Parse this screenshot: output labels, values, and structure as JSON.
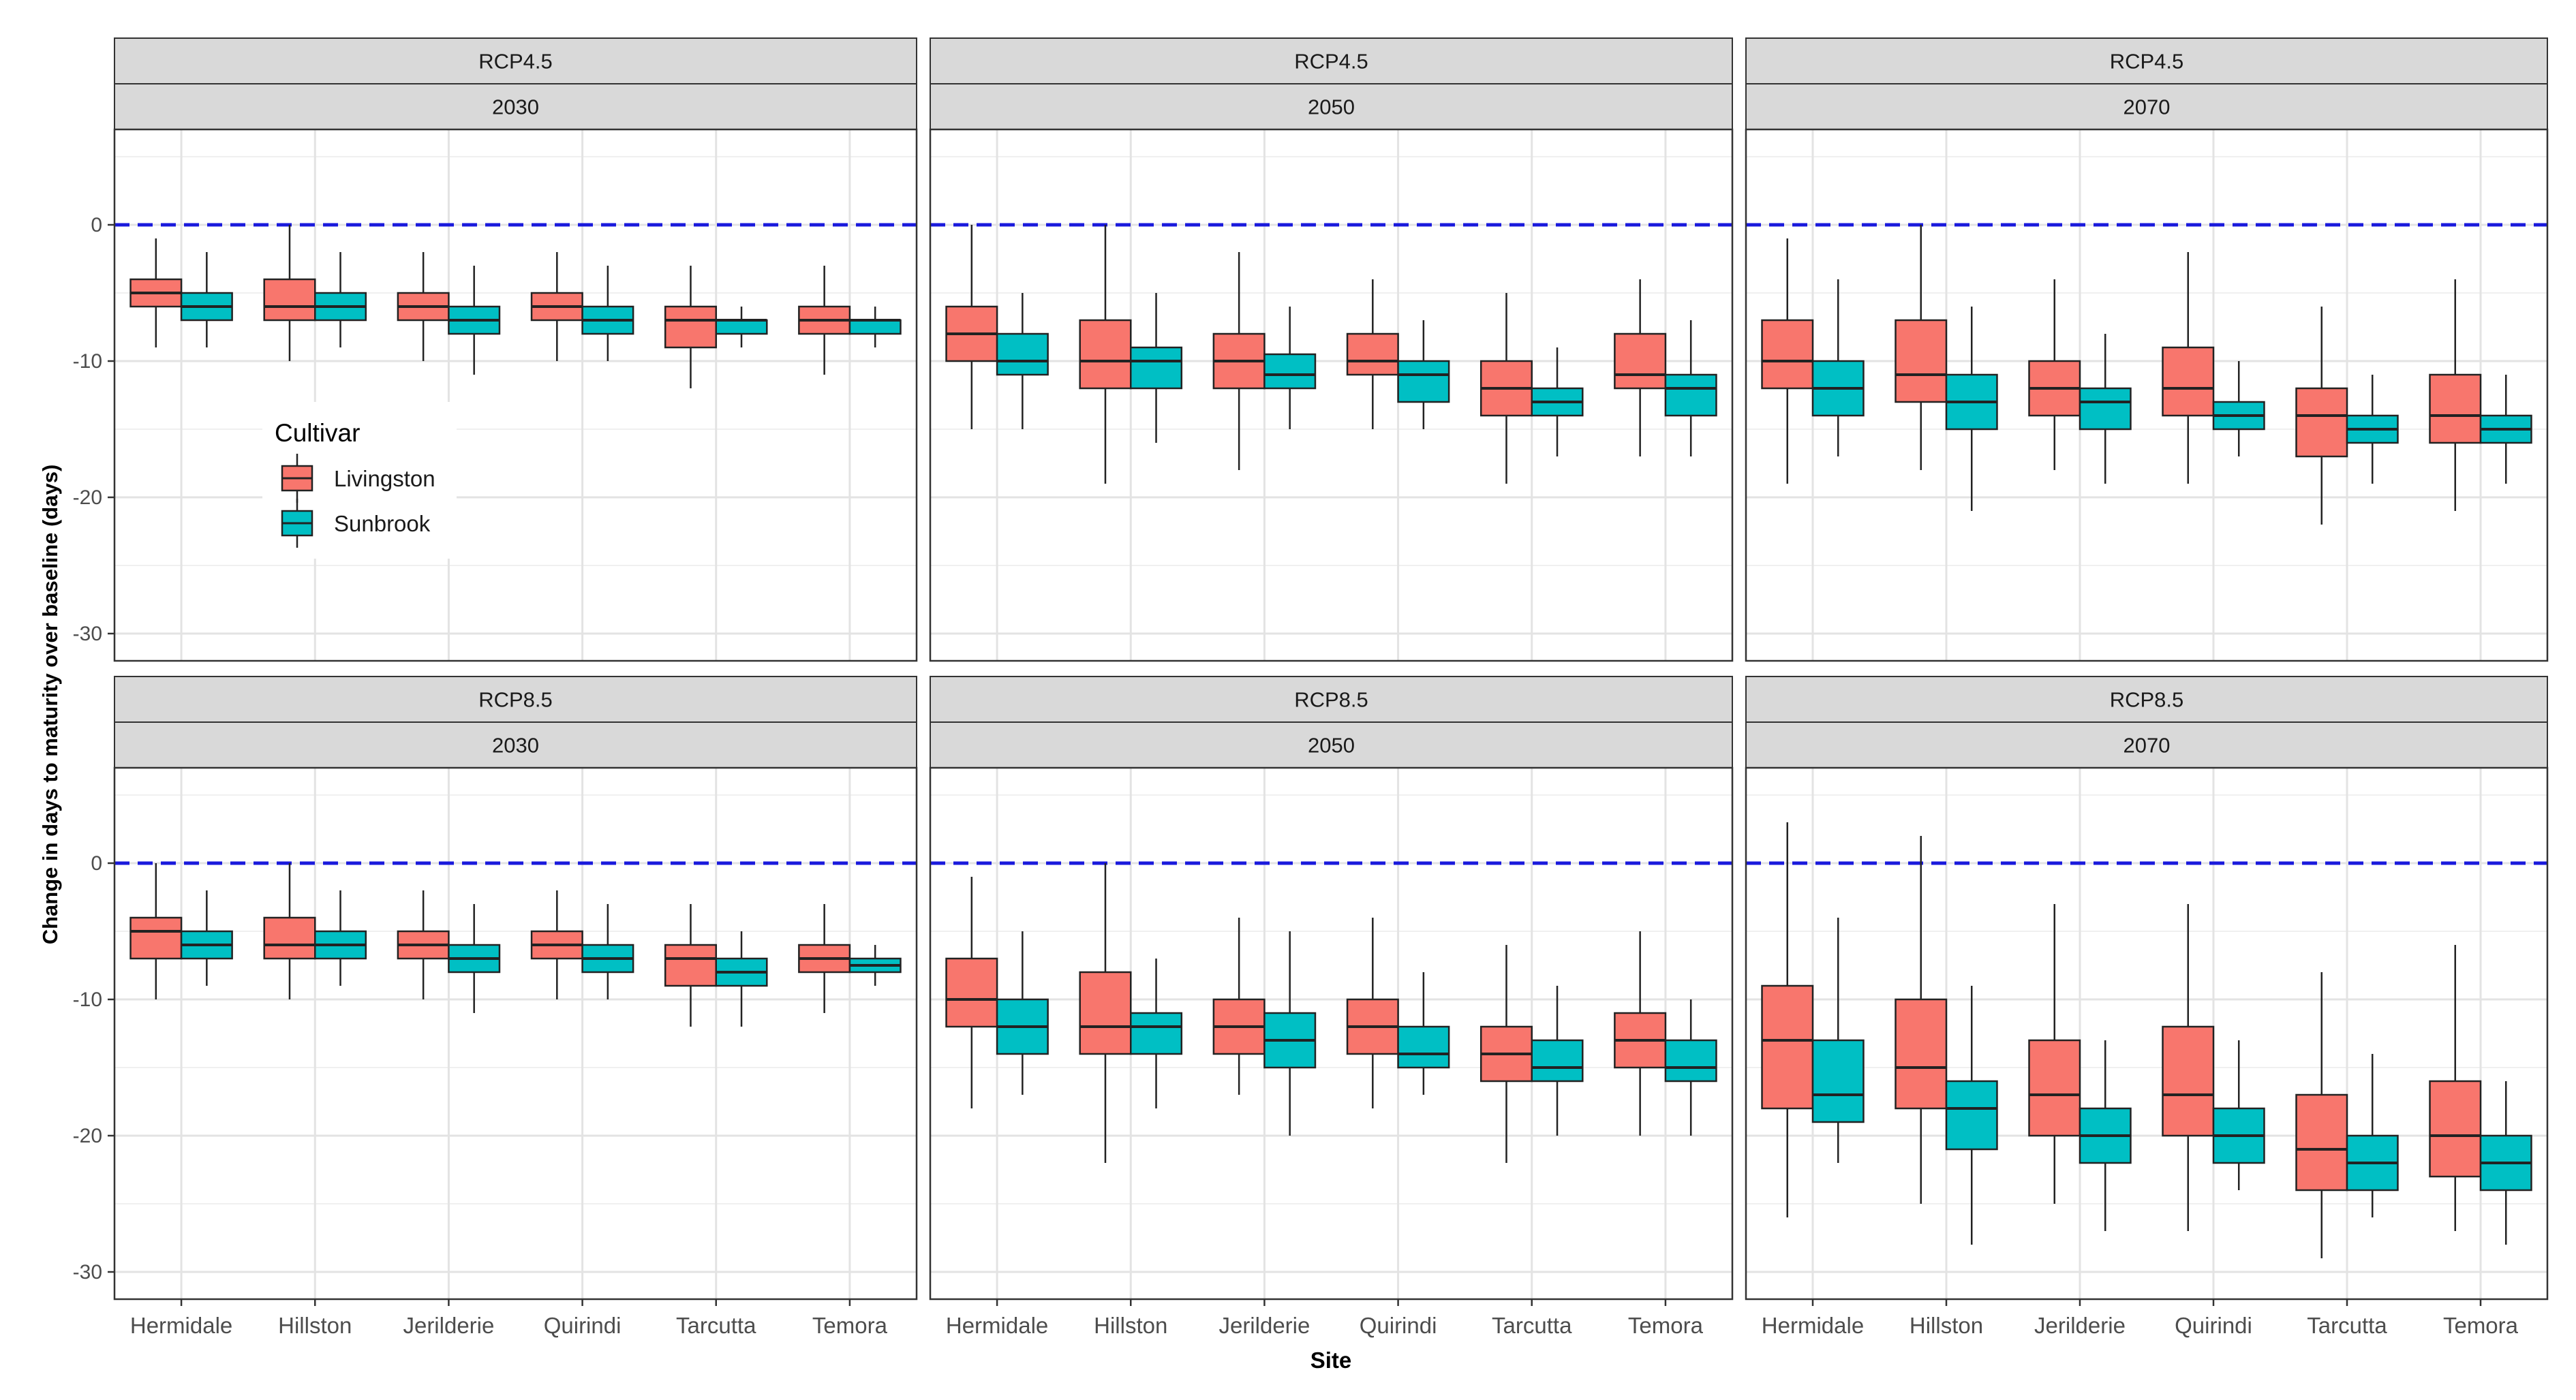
{
  "chart_data": {
    "type": "boxplot",
    "title": "",
    "xlabel": "Site",
    "ylabel": "Change in days to maturity over baseline (days)",
    "ylim": [
      -32,
      7
    ],
    "yticks": [
      0,
      -10,
      -20,
      -30
    ],
    "reference_line": {
      "y": 0,
      "style": "dashed",
      "color": "#1a1adc"
    },
    "categories": [
      "Hermidale",
      "Hillston",
      "Jerilderie",
      "Quirindi",
      "Tarcutta",
      "Temora"
    ],
    "legend": {
      "title": "Cultivar",
      "position": "inside-top-left-panel",
      "items": [
        {
          "name": "Livingston",
          "color": "#f8766d"
        },
        {
          "name": "Sunbrook",
          "color": "#00bfc4"
        }
      ]
    },
    "panels": [
      {
        "scenario": "RCP4.5",
        "year": "2030",
        "row": 0,
        "col": 0,
        "series": [
          {
            "name": "Livingston",
            "boxes": [
              {
                "min": -9,
                "q1": -6,
                "median": -5,
                "q3": -4,
                "max": -1
              },
              {
                "min": -10,
                "q1": -7,
                "median": -6,
                "q3": -4,
                "max": 0
              },
              {
                "min": -10,
                "q1": -7,
                "median": -6,
                "q3": -5,
                "max": -2
              },
              {
                "min": -10,
                "q1": -7,
                "median": -6,
                "q3": -5,
                "max": -2
              },
              {
                "min": -12,
                "q1": -9,
                "median": -7,
                "q3": -6,
                "max": -3
              },
              {
                "min": -11,
                "q1": -8,
                "median": -7,
                "q3": -6,
                "max": -3
              }
            ]
          },
          {
            "name": "Sunbrook",
            "boxes": [
              {
                "min": -9,
                "q1": -7,
                "median": -6,
                "q3": -5,
                "max": -2
              },
              {
                "min": -9,
                "q1": -7,
                "median": -6,
                "q3": -5,
                "max": -2
              },
              {
                "min": -11,
                "q1": -8,
                "median": -7,
                "q3": -6,
                "max": -3
              },
              {
                "min": -10,
                "q1": -8,
                "median": -7,
                "q3": -6,
                "max": -3
              },
              {
                "min": -9,
                "q1": -8,
                "median": -7,
                "q3": -7,
                "max": -6
              },
              {
                "min": -9,
                "q1": -8,
                "median": -7,
                "q3": -7,
                "max": -6
              }
            ]
          }
        ]
      },
      {
        "scenario": "RCP4.5",
        "year": "2050",
        "row": 0,
        "col": 1,
        "series": [
          {
            "name": "Livingston",
            "boxes": [
              {
                "min": -15,
                "q1": -10,
                "median": -8,
                "q3": -6,
                "max": 0
              },
              {
                "min": -19,
                "q1": -12,
                "median": -10,
                "q3": -7,
                "max": 0
              },
              {
                "min": -18,
                "q1": -12,
                "median": -10,
                "q3": -8,
                "max": -2
              },
              {
                "min": -15,
                "q1": -11,
                "median": -10,
                "q3": -8,
                "max": -4
              },
              {
                "min": -19,
                "q1": -14,
                "median": -12,
                "q3": -10,
                "max": -5
              },
              {
                "min": -17,
                "q1": -12,
                "median": -11,
                "q3": -8,
                "max": -4
              }
            ]
          },
          {
            "name": "Sunbrook",
            "boxes": [
              {
                "min": -15,
                "q1": -11,
                "median": -10,
                "q3": -8,
                "max": -5
              },
              {
                "min": -16,
                "q1": -12,
                "median": -10,
                "q3": -9,
                "max": -5
              },
              {
                "min": -15,
                "q1": -12,
                "median": -11,
                "q3": -9.5,
                "max": -6
              },
              {
                "min": -15,
                "q1": -13,
                "median": -11,
                "q3": -10,
                "max": -7
              },
              {
                "min": -17,
                "q1": -14,
                "median": -13,
                "q3": -12,
                "max": -9
              },
              {
                "min": -17,
                "q1": -14,
                "median": -12,
                "q3": -11,
                "max": -7
              }
            ]
          }
        ]
      },
      {
        "scenario": "RCP4.5",
        "year": "2070",
        "row": 0,
        "col": 2,
        "series": [
          {
            "name": "Livingston",
            "boxes": [
              {
                "min": -19,
                "q1": -12,
                "median": -10,
                "q3": -7,
                "max": -1
              },
              {
                "min": -18,
                "q1": -13,
                "median": -11,
                "q3": -7,
                "max": 0
              },
              {
                "min": -18,
                "q1": -14,
                "median": -12,
                "q3": -10,
                "max": -4
              },
              {
                "min": -19,
                "q1": -14,
                "median": -12,
                "q3": -9,
                "max": -2
              },
              {
                "min": -22,
                "q1": -17,
                "median": -14,
                "q3": -12,
                "max": -6
              },
              {
                "min": -21,
                "q1": -16,
                "median": -14,
                "q3": -11,
                "max": -4
              }
            ]
          },
          {
            "name": "Sunbrook",
            "boxes": [
              {
                "min": -17,
                "q1": -14,
                "median": -12,
                "q3": -10,
                "max": -4
              },
              {
                "min": -21,
                "q1": -15,
                "median": -13,
                "q3": -11,
                "max": -6
              },
              {
                "min": -19,
                "q1": -15,
                "median": -13,
                "q3": -12,
                "max": -8
              },
              {
                "min": -17,
                "q1": -15,
                "median": -14,
                "q3": -13,
                "max": -10
              },
              {
                "min": -19,
                "q1": -16,
                "median": -15,
                "q3": -14,
                "max": -11
              },
              {
                "min": -19,
                "q1": -16,
                "median": -15,
                "q3": -14,
                "max": -11
              }
            ]
          }
        ]
      },
      {
        "scenario": "RCP8.5",
        "year": "2030",
        "row": 1,
        "col": 0,
        "series": [
          {
            "name": "Livingston",
            "boxes": [
              {
                "min": -10,
                "q1": -7,
                "median": -5,
                "q3": -4,
                "max": 0
              },
              {
                "min": -10,
                "q1": -7,
                "median": -6,
                "q3": -4,
                "max": 0
              },
              {
                "min": -10,
                "q1": -7,
                "median": -6,
                "q3": -5,
                "max": -2
              },
              {
                "min": -10,
                "q1": -7,
                "median": -6,
                "q3": -5,
                "max": -2
              },
              {
                "min": -12,
                "q1": -9,
                "median": -7,
                "q3": -6,
                "max": -3
              },
              {
                "min": -11,
                "q1": -8,
                "median": -7,
                "q3": -6,
                "max": -3
              }
            ]
          },
          {
            "name": "Sunbrook",
            "boxes": [
              {
                "min": -9,
                "q1": -7,
                "median": -6,
                "q3": -5,
                "max": -2
              },
              {
                "min": -9,
                "q1": -7,
                "median": -6,
                "q3": -5,
                "max": -2
              },
              {
                "min": -11,
                "q1": -8,
                "median": -7,
                "q3": -6,
                "max": -3
              },
              {
                "min": -10,
                "q1": -8,
                "median": -7,
                "q3": -6,
                "max": -3
              },
              {
                "min": -12,
                "q1": -9,
                "median": -8,
                "q3": -7,
                "max": -5
              },
              {
                "min": -9,
                "q1": -8,
                "median": -7.5,
                "q3": -7,
                "max": -6
              }
            ]
          }
        ]
      },
      {
        "scenario": "RCP8.5",
        "year": "2050",
        "row": 1,
        "col": 1,
        "series": [
          {
            "name": "Livingston",
            "boxes": [
              {
                "min": -18,
                "q1": -12,
                "median": -10,
                "q3": -7,
                "max": -1
              },
              {
                "min": -22,
                "q1": -14,
                "median": -12,
                "q3": -8,
                "max": 0
              },
              {
                "min": -17,
                "q1": -14,
                "median": -12,
                "q3": -10,
                "max": -4
              },
              {
                "min": -18,
                "q1": -14,
                "median": -12,
                "q3": -10,
                "max": -4
              },
              {
                "min": -22,
                "q1": -16,
                "median": -14,
                "q3": -12,
                "max": -6
              },
              {
                "min": -20,
                "q1": -15,
                "median": -13,
                "q3": -11,
                "max": -5
              }
            ]
          },
          {
            "name": "Sunbrook",
            "boxes": [
              {
                "min": -17,
                "q1": -14,
                "median": -12,
                "q3": -10,
                "max": -5
              },
              {
                "min": -18,
                "q1": -14,
                "median": -12,
                "q3": -11,
                "max": -7
              },
              {
                "min": -20,
                "q1": -15,
                "median": -13,
                "q3": -11,
                "max": -5
              },
              {
                "min": -17,
                "q1": -15,
                "median": -14,
                "q3": -12,
                "max": -8
              },
              {
                "min": -20,
                "q1": -16,
                "median": -15,
                "q3": -13,
                "max": -9
              },
              {
                "min": -20,
                "q1": -16,
                "median": -15,
                "q3": -13,
                "max": -10
              }
            ]
          }
        ]
      },
      {
        "scenario": "RCP8.5",
        "year": "2070",
        "row": 1,
        "col": 2,
        "series": [
          {
            "name": "Livingston",
            "boxes": [
              {
                "min": -26,
                "q1": -18,
                "median": -13,
                "q3": -9,
                "max": 3
              },
              {
                "min": -25,
                "q1": -18,
                "median": -15,
                "q3": -10,
                "max": 2
              },
              {
                "min": -25,
                "q1": -20,
                "median": -17,
                "q3": -13,
                "max": -3
              },
              {
                "min": -27,
                "q1": -20,
                "median": -17,
                "q3": -12,
                "max": -3
              },
              {
                "min": -29,
                "q1": -24,
                "median": -21,
                "q3": -17,
                "max": -8
              },
              {
                "min": -27,
                "q1": -23,
                "median": -20,
                "q3": -16,
                "max": -6
              }
            ]
          },
          {
            "name": "Sunbrook",
            "boxes": [
              {
                "min": -22,
                "q1": -19,
                "median": -17,
                "q3": -13,
                "max": -4
              },
              {
                "min": -28,
                "q1": -21,
                "median": -18,
                "q3": -16,
                "max": -9
              },
              {
                "min": -27,
                "q1": -22,
                "median": -20,
                "q3": -18,
                "max": -13
              },
              {
                "min": -24,
                "q1": -22,
                "median": -20,
                "q3": -18,
                "max": -13
              },
              {
                "min": -26,
                "q1": -24,
                "median": -22,
                "q3": -20,
                "max": -14
              },
              {
                "min": -28,
                "q1": -24,
                "median": -22,
                "q3": -20,
                "max": -16
              }
            ]
          }
        ]
      }
    ]
  }
}
